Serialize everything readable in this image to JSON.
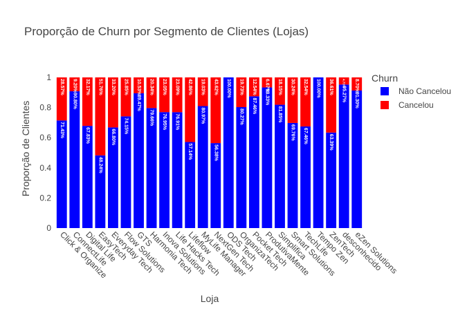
{
  "chart_data": {
    "type": "bar",
    "stacked": true,
    "title": "Proporção de Churn por Segmento de Clientes (Lojas)",
    "xlabel": "Loja",
    "ylabel": "Proporção de Clientes",
    "ylim": [
      0,
      1
    ],
    "yticks": [
      "0",
      "0.2",
      "0.4",
      "0.6",
      "0.8",
      "1"
    ],
    "grid": false,
    "legend_title": "Churn",
    "legend_position": "top-right",
    "categories": [
      "Click & Organize",
      "ConnectLife",
      "Digital Life",
      "EasyTech",
      "Everyday Tech",
      "Flow Solutions",
      "GTS",
      "Harmonia Tech",
      "Inova Solutions",
      "Life Hacks Tech",
      "Lifeflow",
      "MyLife Manager",
      "NextGen Tech",
      "ODS Tech",
      "OrganizaTech",
      "Pocket Tech",
      "ProdutivaMente",
      "Simplifica",
      "Smart Solutions",
      "TechLife",
      "Tempo Zen",
      "ZenTech",
      "desconhecido",
      "eZen Solutions"
    ],
    "series": [
      {
        "name": "Não Cancelou",
        "color": "#0000ff",
        "values": [
          0.7143,
          0.908,
          0.6783,
          0.4824,
          0.668,
          0.7415,
          0.8947,
          0.7966,
          0.7695,
          0.7691,
          0.5714,
          0.8097,
          0.5638,
          1.0,
          0.8027,
          0.8746,
          0.9333,
          0.8185,
          0.6976,
          0.6746,
          1.0,
          0.6339,
          0.9527,
          0.913
        ],
        "labels": [
          "71.43%",
          "90.80%",
          "67.83%",
          "48.24%",
          "66.80%",
          "74.15%",
          "89.47%",
          "79.66%",
          "76.95%",
          "76.91%",
          "57.14%",
          "80.97%",
          "56.38%",
          "100.00%",
          "80.27%",
          "87.46%",
          "93.33%",
          "81.85%",
          "69.76%",
          "67.46%",
          "100.00%",
          "63.39%",
          "95.27%",
          "91.30%"
        ]
      },
      {
        "name": "Cancelou",
        "color": "#ff0000",
        "values": [
          0.2857,
          0.092,
          0.3217,
          0.5176,
          0.332,
          0.2585,
          0.1053,
          0.2034,
          0.2305,
          0.2309,
          0.4286,
          0.1903,
          0.4362,
          0.0,
          0.1973,
          0.1254,
          0.0667,
          0.1815,
          0.3024,
          0.3254,
          0.0,
          0.3661,
          0.0473,
          0.087
        ],
        "labels": [
          "28.57%",
          "9.20%",
          "32.17%",
          "51.76%",
          "33.20%",
          "25.85%",
          "10.53%",
          "20.34%",
          "23.05%",
          "23.09%",
          "42.86%",
          "19.03%",
          "43.62%",
          "",
          "19.73%",
          "12.54%",
          "6.67%",
          "18.15%",
          "30.24%",
          "32.54%",
          "",
          "36.61%",
          "4.73%",
          "8.70%"
        ]
      }
    ]
  }
}
